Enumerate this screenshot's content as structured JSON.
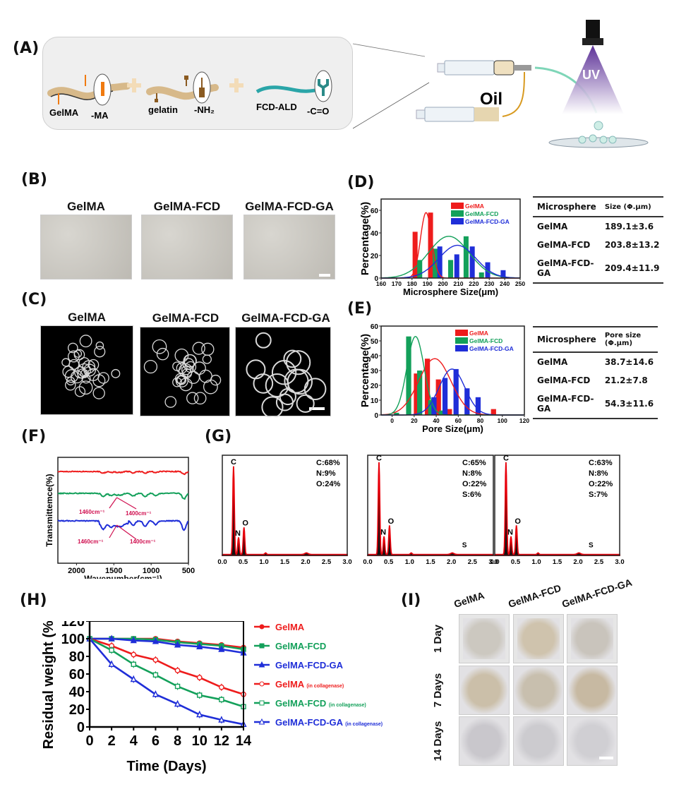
{
  "panels": {
    "A": {
      "label": "(A)",
      "components": [
        {
          "name": "GelMA",
          "group": "-MA"
        },
        {
          "name": "gelatin",
          "group": "-NH₂"
        },
        {
          "name": "FCD-ALD",
          "group": "-C=O"
        }
      ],
      "oil_label": "Oil",
      "uv_label": "UV"
    },
    "B": {
      "label": "(B)",
      "titles": [
        "GelMA",
        "GelMA-FCD",
        "GelMA-FCD-GA"
      ]
    },
    "C": {
      "label": "(C)",
      "titles": [
        "GelMA",
        "GelMA-FCD",
        "GelMA-FCD-GA"
      ]
    },
    "D": {
      "label": "(D)",
      "table": {
        "headers": [
          "Microsphere",
          "Size (Φ.μm)"
        ],
        "rows": [
          [
            "GelMA",
            "189.1±3.6"
          ],
          [
            "GelMA-FCD",
            "203.8±13.2"
          ],
          [
            "GelMA-FCD-GA",
            "209.4±11.9"
          ]
        ]
      }
    },
    "E": {
      "label": "(E)",
      "table": {
        "headers": [
          "Microsphere",
          "Pore size (Φ.μm)"
        ],
        "rows": [
          [
            "GelMA",
            "38.7±14.6"
          ],
          [
            "GelMA-FCD",
            "21.2±7.8"
          ],
          [
            "GelMA-FCD-GA",
            "54.3±11.6"
          ]
        ]
      }
    },
    "F": {
      "label": "(F)"
    },
    "G": {
      "label": "(G)"
    },
    "H": {
      "label": "(H)"
    },
    "I": {
      "label": "(I)",
      "columns": [
        "GelMA",
        "GelMA-FCD",
        "GelMA-FCD-GA"
      ],
      "rows": [
        "1 Day",
        "7 Days",
        "14 Days"
      ]
    }
  },
  "colors": {
    "gelma": "#ee1c1c",
    "fcd": "#13a05a",
    "ga": "#1f2ed8",
    "annot": "#d01050"
  },
  "chart_data": [
    {
      "id": "D",
      "type": "bar",
      "title": "",
      "xlabel": "Microsphere Size(μm)",
      "ylabel": "Percentage(%)",
      "xlim": [
        160,
        250
      ],
      "ylim": [
        0,
        70
      ],
      "xticks": [
        160,
        170,
        180,
        190,
        200,
        210,
        220,
        230,
        240,
        250
      ],
      "yticks": [
        0,
        20,
        40,
        60
      ],
      "legend": "top-right",
      "series": [
        {
          "name": "GelMA",
          "color": "#ee1c1c",
          "x": [
            182,
            192
          ],
          "values": [
            41,
            58
          ],
          "fit": {
            "mean": 189.1,
            "sd": 3.6,
            "peak": 58
          }
        },
        {
          "name": "GelMA-FCD",
          "color": "#13a05a",
          "x": [
            185,
            195,
            205,
            215,
            225
          ],
          "values": [
            16,
            26,
            16,
            37,
            5
          ],
          "fit": {
            "mean": 203.8,
            "sd": 13.2,
            "peak": 37
          }
        },
        {
          "name": "GelMA-FCD-GA",
          "color": "#1f2ed8",
          "x": [
            198,
            209,
            219,
            229,
            239
          ],
          "values": [
            28,
            21,
            28,
            14,
            7
          ],
          "fit": {
            "mean": 209.4,
            "sd": 11.9,
            "peak": 29
          }
        }
      ]
    },
    {
      "id": "E",
      "type": "bar",
      "title": "",
      "xlabel": "Pore Size(μm)",
      "ylabel": "Percentage(%)",
      "xlim": [
        -10,
        120
      ],
      "ylim": [
        0,
        60
      ],
      "xticks": [
        0,
        20,
        40,
        60,
        80,
        100,
        120
      ],
      "yticks": [
        0,
        10,
        20,
        30,
        40,
        50,
        60
      ],
      "legend": "top-right",
      "series": [
        {
          "name": "GelMA",
          "color": "#ee1c1c",
          "x": [
            22,
            32,
            42,
            52,
            92
          ],
          "values": [
            28,
            38,
            24,
            4,
            4
          ],
          "fit": {
            "mean": 38.7,
            "sd": 14.6,
            "peak": 38
          }
        },
        {
          "name": "GelMA-FCD",
          "color": "#13a05a",
          "x": [
            4,
            15,
            25,
            35,
            45
          ],
          "values": [
            1.5,
            53,
            30,
            10,
            3
          ],
          "fit": {
            "mean": 21.2,
            "sd": 7.8,
            "peak": 53
          }
        },
        {
          "name": "GelMA-FCD-GA",
          "color": "#1f2ed8",
          "x": [
            38,
            48,
            58,
            68,
            78
          ],
          "values": [
            12,
            25,
            31,
            18,
            12
          ],
          "fit": {
            "mean": 54.3,
            "sd": 11.6,
            "peak": 31
          }
        }
      ]
    },
    {
      "id": "F",
      "type": "line",
      "title": "",
      "xlabel": "Wavenumber(cm⁻¹)",
      "ylabel": "Transmittemce(%)",
      "xlim": [
        2250,
        500
      ],
      "xticks": [
        2000,
        1500,
        1000,
        500
      ],
      "annotations": [
        "1460cm⁻¹",
        "1400cm⁻¹",
        "1460cm⁻¹",
        "1400cm⁻¹"
      ],
      "series": [
        {
          "name": "GelMA",
          "color": "#ee1c1c",
          "offset": 2
        },
        {
          "name": "GelMA-FCD",
          "color": "#13a05a",
          "offset": 1
        },
        {
          "name": "GelMA-FCD-GA",
          "color": "#1f2ed8",
          "offset": 0
        }
      ]
    },
    {
      "id": "G",
      "type": "line",
      "title": "",
      "xlim": [
        0,
        3.0
      ],
      "xticks": [
        "0.0",
        "0.5",
        "1.0",
        "1.5",
        "2.0",
        "2.5",
        "3.0"
      ],
      "spectra": [
        {
          "composition": [
            "C:68%",
            "N:9%",
            "O:24%"
          ],
          "peaks": [
            {
              "el": "C",
              "x": 0.27,
              "h": 0.88
            },
            {
              "el": "N",
              "x": 0.39,
              "h": 0.17
            },
            {
              "el": "O",
              "x": 0.52,
              "h": 0.27
            }
          ],
          "has_s": false
        },
        {
          "composition": [
            "C:65%",
            "N:8%",
            "O:22%",
            "S:6%"
          ],
          "peaks": [
            {
              "el": "C",
              "x": 0.27,
              "h": 0.92
            },
            {
              "el": "N",
              "x": 0.39,
              "h": 0.18
            },
            {
              "el": "O",
              "x": 0.52,
              "h": 0.29
            }
          ],
          "has_s": true
        },
        {
          "composition": [
            "C:63%",
            "N:8%",
            "O:22%",
            "S:7%"
          ],
          "peaks": [
            {
              "el": "C",
              "x": 0.27,
              "h": 0.92
            },
            {
              "el": "N",
              "x": 0.39,
              "h": 0.18
            },
            {
              "el": "O",
              "x": 0.52,
              "h": 0.29
            }
          ],
          "has_s": true
        }
      ]
    },
    {
      "id": "H",
      "type": "line",
      "title": "",
      "xlabel": "Time (Days)",
      "ylabel": "Residual weight (%)",
      "x": [
        0,
        2,
        4,
        6,
        8,
        10,
        12,
        14
      ],
      "xlim": [
        0,
        14
      ],
      "ylim": [
        0,
        120
      ],
      "xticks": [
        0,
        2,
        4,
        6,
        8,
        10,
        12,
        14
      ],
      "yticks": [
        0,
        20,
        40,
        60,
        80,
        100,
        120
      ],
      "legend": "right",
      "series": [
        {
          "name": "GelMA",
          "suffix": "",
          "color": "#ee1c1c",
          "marker": "circle-filled",
          "values": [
            100,
            100,
            100,
            100,
            97,
            95,
            93,
            90
          ]
        },
        {
          "name": "GelMA-FCD",
          "suffix": "",
          "color": "#13a05a",
          "marker": "square-filled",
          "values": [
            100,
            100,
            100,
            99,
            96,
            94,
            92,
            88
          ]
        },
        {
          "name": "GelMA-FCD-GA",
          "suffix": "",
          "color": "#1f2ed8",
          "marker": "triangle-filled",
          "values": [
            100,
            100,
            98,
            97,
            93,
            91,
            88,
            84
          ]
        },
        {
          "name": "GelMA",
          "suffix": "(in collagenase)",
          "color": "#ee1c1c",
          "marker": "circle-open",
          "values": [
            100,
            92,
            82,
            76,
            64,
            56,
            45,
            37
          ]
        },
        {
          "name": "GelMA-FCD",
          "suffix": "(in collagenase)",
          "color": "#13a05a",
          "marker": "square-open",
          "values": [
            100,
            87,
            71,
            59,
            46,
            36,
            31,
            23
          ]
        },
        {
          "name": "GelMA-FCD-GA",
          "suffix": "(in collagenase)",
          "color": "#1f2ed8",
          "marker": "triangle-open",
          "values": [
            100,
            71,
            54,
            37,
            26,
            14,
            8,
            3
          ]
        }
      ]
    }
  ]
}
